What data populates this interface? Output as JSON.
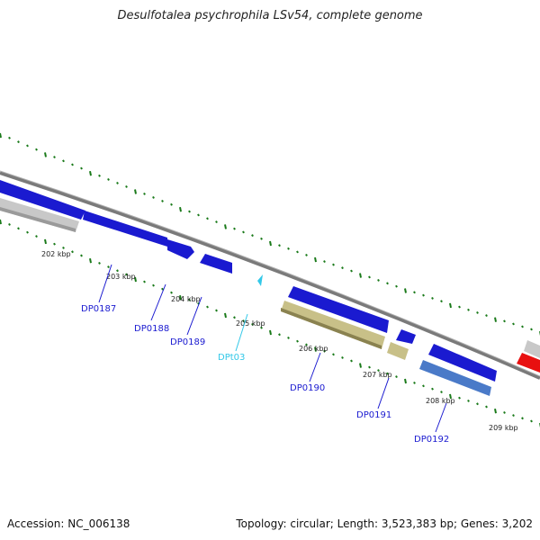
{
  "title": "Desulfotalea psychrophila LSv54, complete genome",
  "footer": {
    "accession": "Accession: NC_006138",
    "topology": "Topology: circular; Length: 3,523,383 bp; Genes: 3,202"
  },
  "ticks": [
    "202 kbp",
    "203 kbp",
    "204 kbp",
    "205 kbp",
    "206 kbp",
    "207 kbp",
    "208 kbp",
    "209 kbp"
  ],
  "genes": [
    {
      "label": "DP0187",
      "color": "#1a1ad0"
    },
    {
      "label": "DP0188",
      "color": "#1a1ad0"
    },
    {
      "label": "DP0189",
      "color": "#1a1ad0"
    },
    {
      "label": "DPt03",
      "color": "#33c8e8"
    },
    {
      "label": "DP0190",
      "color": "#1a1ad0"
    },
    {
      "label": "DP0191",
      "color": "#1a1ad0"
    },
    {
      "label": "DP0192",
      "color": "#1a1ad0"
    }
  ],
  "colors": {
    "cds": "#1a1ad0",
    "trna": "#33c8e8",
    "rrna": "#e81010",
    "gray": "#c8c8c8",
    "khaki": "#c8c088",
    "backbone": "#7a7a7a",
    "ticks": "#1a7a1a"
  }
}
